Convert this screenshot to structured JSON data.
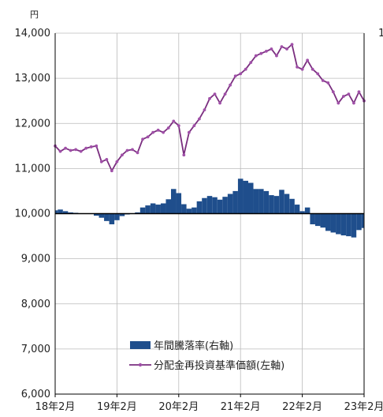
{
  "chart_data": {
    "type": "bar+line",
    "y_unit": "円",
    "ylim": [
      6000,
      14000
    ],
    "y_ticks": [
      "6,000",
      "7,000",
      "8,000",
      "9,000",
      "10,000",
      "11,000",
      "12,000",
      "13,000",
      "14,000"
    ],
    "y_tick_values": [
      6000,
      7000,
      8000,
      9000,
      10000,
      11000,
      12000,
      13000,
      14000
    ],
    "x_labels": [
      "18年2月",
      "19年2月",
      "20年2月",
      "21年2月",
      "22年2月",
      "23年2月"
    ],
    "start_date": "2018-02",
    "end_date": "2023-02",
    "grid": true,
    "legend_position": "bottom-center",
    "colors": {
      "bar": "#1f4e8c",
      "line": "#7a2e7f",
      "marker": "#a050a8",
      "grid": "#bbbbbb",
      "baseline": "#000000"
    },
    "legend": {
      "bar_label": "年間騰落率(右軸)",
      "line_label": "分配金再投資基準価額(左軸)"
    },
    "right_axis_edge_label": "1",
    "series": [
      {
        "name": "分配金再投資基準価額(左軸)",
        "axis": "left",
        "kind": "line",
        "values": [
          11500,
          11380,
          11450,
          11400,
          11420,
          11380,
          11450,
          11480,
          11500,
          11150,
          11200,
          10950,
          11150,
          11300,
          11400,
          11420,
          11350,
          11650,
          11700,
          11800,
          11850,
          11800,
          11900,
          12050,
          11950,
          11300,
          11800,
          11950,
          12100,
          12300,
          12550,
          12650,
          12450,
          12650,
          12850,
          13050,
          13100,
          13200,
          13350,
          13500,
          13550,
          13600,
          13650,
          13500,
          13700,
          13650,
          13750,
          13250,
          13200,
          13400,
          13200,
          13100,
          12950,
          12900,
          12700,
          12450,
          12600,
          12650,
          12450,
          12700,
          12500
        ]
      },
      {
        "name": "年間騰落率(右軸)",
        "axis": "right",
        "kind": "bar",
        "values": [
          0.8,
          1.0,
          0.6,
          0.3,
          0.2,
          0.1,
          0.0,
          0.0,
          -0.5,
          -1.0,
          -1.8,
          -2.6,
          -1.6,
          -0.6,
          -0.2,
          0.0,
          0.3,
          1.5,
          2.0,
          2.5,
          2.2,
          2.5,
          3.5,
          6.0,
          5.0,
          2.3,
          1.2,
          1.5,
          3.0,
          3.8,
          4.3,
          4.0,
          3.4,
          4.1,
          4.8,
          5.5,
          8.5,
          8.0,
          7.5,
          6.0,
          6.0,
          5.5,
          4.5,
          4.3,
          5.8,
          4.8,
          3.6,
          2.2,
          0.6,
          1.5,
          -2.6,
          -3.0,
          -3.4,
          -4.2,
          -4.6,
          -5.0,
          -5.3,
          -5.5,
          -5.8,
          -4.0,
          -3.5
        ]
      }
    ]
  }
}
